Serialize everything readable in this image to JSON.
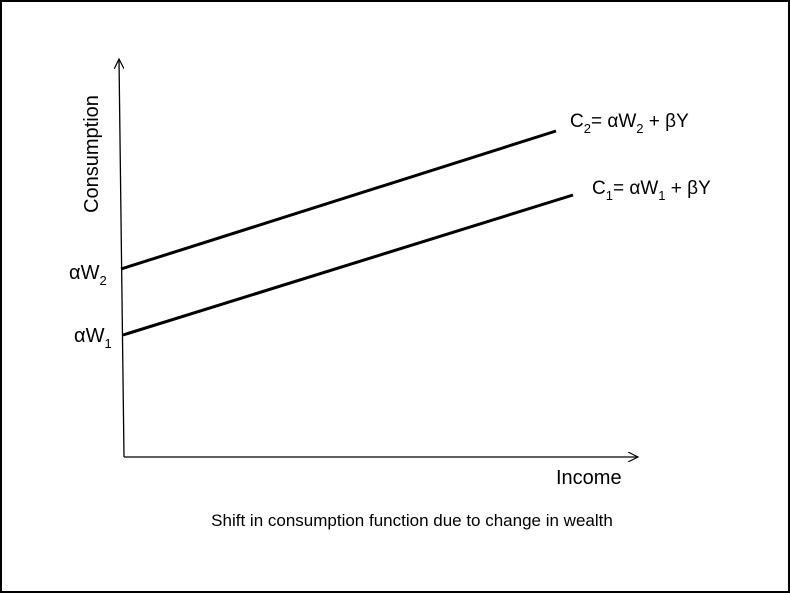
{
  "diagram": {
    "y_axis_label": "Consumption",
    "x_axis_label": "Income",
    "caption": "Shift in consumption function due to change in wealth",
    "line_color": "#000000",
    "lines": [
      {
        "name": "C2",
        "equation_parts": [
          "C",
          "2",
          "= αW",
          "2",
          " + βY"
        ],
        "intercept_parts": [
          "αW",
          "2"
        ]
      },
      {
        "name": "C1",
        "equation_parts": [
          "C",
          "1",
          "= αW",
          "1",
          " + βY"
        ],
        "intercept_parts": [
          "αW",
          "1"
        ]
      }
    ]
  }
}
